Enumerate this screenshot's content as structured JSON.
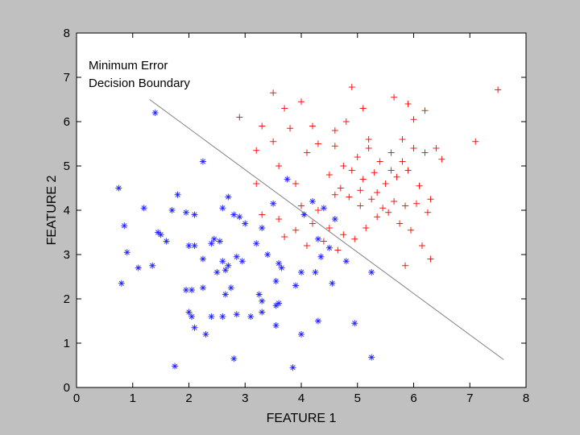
{
  "chart_data": {
    "type": "scatter",
    "xlabel": "FEATURE 1",
    "ylabel": "FEATURE 2",
    "xlim": [
      0,
      8
    ],
    "ylim": [
      0,
      8
    ],
    "xticks": [
      "0",
      "1",
      "2",
      "3",
      "4",
      "5",
      "6",
      "7",
      "8"
    ],
    "yticks": [
      "0",
      "1",
      "2",
      "3",
      "4",
      "5",
      "6",
      "7",
      "8"
    ],
    "grid": false,
    "annotation": {
      "line1": "Minimum Error",
      "line2": "Decision Boundary"
    },
    "boundary": {
      "x": [
        1.3,
        7.6
      ],
      "y": [
        6.5,
        0.63
      ]
    },
    "series": [
      {
        "color": "#ff0000",
        "marker": "+",
        "points": [
          [
            3.5,
            6.65
          ],
          [
            4.9,
            6.78
          ],
          [
            5.65,
            6.55
          ],
          [
            6.2,
            6.25
          ],
          [
            7.5,
            6.72
          ],
          [
            3.7,
            6.3
          ],
          [
            4.0,
            6.45
          ],
          [
            4.8,
            6.0
          ],
          [
            5.1,
            6.3
          ],
          [
            5.9,
            6.4
          ],
          [
            2.9,
            6.1
          ],
          [
            3.3,
            5.9
          ],
          [
            3.8,
            5.85
          ],
          [
            4.3,
            5.5
          ],
          [
            4.6,
            5.45
          ],
          [
            5.0,
            5.2
          ],
          [
            5.2,
            5.4
          ],
          [
            5.4,
            5.1
          ],
          [
            5.6,
            5.3
          ],
          [
            5.8,
            5.1
          ],
          [
            6.0,
            5.4
          ],
          [
            6.2,
            5.3
          ],
          [
            6.5,
            5.15
          ],
          [
            7.1,
            5.55
          ],
          [
            3.2,
            5.35
          ],
          [
            3.5,
            5.55
          ],
          [
            4.1,
            5.3
          ],
          [
            4.5,
            4.8
          ],
          [
            4.7,
            4.5
          ],
          [
            4.9,
            4.9
          ],
          [
            5.1,
            4.7
          ],
          [
            5.3,
            4.85
          ],
          [
            5.5,
            4.6
          ],
          [
            5.7,
            4.75
          ],
          [
            5.9,
            4.9
          ],
          [
            6.1,
            4.55
          ],
          [
            6.3,
            4.25
          ],
          [
            4.0,
            4.1
          ],
          [
            4.3,
            4.0
          ],
          [
            4.6,
            4.35
          ],
          [
            4.85,
            4.3
          ],
          [
            5.05,
            4.1
          ],
          [
            5.25,
            4.25
          ],
          [
            5.45,
            4.05
          ],
          [
            5.65,
            4.2
          ],
          [
            5.85,
            4.1
          ],
          [
            6.05,
            4.15
          ],
          [
            6.25,
            3.95
          ],
          [
            3.6,
            3.8
          ],
          [
            3.9,
            3.55
          ],
          [
            4.2,
            3.7
          ],
          [
            4.5,
            3.6
          ],
          [
            4.75,
            3.45
          ],
          [
            4.95,
            3.35
          ],
          [
            5.15,
            3.6
          ],
          [
            5.35,
            3.85
          ],
          [
            5.55,
            3.95
          ],
          [
            5.75,
            3.7
          ],
          [
            5.95,
            3.55
          ],
          [
            6.15,
            3.2
          ],
          [
            3.3,
            3.9
          ],
          [
            3.7,
            3.4
          ],
          [
            4.1,
            3.2
          ],
          [
            4.4,
            3.3
          ],
          [
            4.65,
            3.1
          ],
          [
            5.85,
            2.75
          ],
          [
            6.3,
            2.9
          ],
          [
            3.2,
            4.6
          ],
          [
            3.9,
            4.6
          ],
          [
            5.05,
            4.45
          ],
          [
            5.35,
            4.4
          ],
          [
            5.6,
            4.9
          ],
          [
            5.8,
            5.6
          ],
          [
            6.0,
            6.05
          ],
          [
            5.2,
            5.6
          ],
          [
            4.6,
            5.8
          ],
          [
            4.2,
            5.9
          ],
          [
            3.6,
            5.0
          ],
          [
            4.75,
            5.0
          ],
          [
            6.4,
            5.4
          ]
        ]
      },
      {
        "color": "#2020ff",
        "marker": "*",
        "points": [
          [
            1.4,
            6.2
          ],
          [
            2.25,
            5.1
          ],
          [
            0.75,
            4.5
          ],
          [
            1.2,
            4.05
          ],
          [
            1.8,
            4.35
          ],
          [
            1.7,
            4.0
          ],
          [
            1.95,
            3.95
          ],
          [
            2.1,
            3.9
          ],
          [
            2.6,
            4.05
          ],
          [
            2.7,
            4.3
          ],
          [
            0.85,
            3.65
          ],
          [
            1.45,
            3.5
          ],
          [
            1.5,
            3.45
          ],
          [
            1.6,
            3.3
          ],
          [
            2.0,
            3.2
          ],
          [
            2.1,
            3.2
          ],
          [
            2.4,
            3.25
          ],
          [
            2.45,
            3.35
          ],
          [
            2.55,
            3.3
          ],
          [
            2.9,
            3.85
          ],
          [
            3.0,
            3.7
          ],
          [
            2.8,
            3.9
          ],
          [
            0.9,
            3.05
          ],
          [
            1.1,
            2.7
          ],
          [
            1.35,
            2.75
          ],
          [
            2.25,
            2.9
          ],
          [
            2.6,
            2.85
          ],
          [
            2.7,
            2.75
          ],
          [
            2.85,
            2.95
          ],
          [
            2.95,
            2.85
          ],
          [
            2.5,
            2.6
          ],
          [
            2.65,
            2.65
          ],
          [
            3.2,
            3.25
          ],
          [
            3.3,
            3.6
          ],
          [
            3.4,
            3.0
          ],
          [
            3.6,
            2.8
          ],
          [
            3.65,
            2.7
          ],
          [
            3.55,
            2.4
          ],
          [
            3.9,
            2.3
          ],
          [
            4.0,
            2.6
          ],
          [
            0.8,
            2.35
          ],
          [
            1.95,
            2.2
          ],
          [
            2.05,
            2.2
          ],
          [
            2.25,
            2.25
          ],
          [
            2.65,
            2.1
          ],
          [
            2.75,
            2.25
          ],
          [
            3.25,
            2.1
          ],
          [
            3.3,
            1.95
          ],
          [
            3.55,
            1.85
          ],
          [
            3.6,
            1.9
          ],
          [
            2.0,
            1.7
          ],
          [
            2.05,
            1.6
          ],
          [
            2.4,
            1.6
          ],
          [
            2.6,
            1.6
          ],
          [
            2.85,
            1.65
          ],
          [
            3.1,
            1.6
          ],
          [
            3.3,
            1.7
          ],
          [
            3.55,
            1.4
          ],
          [
            4.0,
            1.2
          ],
          [
            4.3,
            1.5
          ],
          [
            2.1,
            1.35
          ],
          [
            2.3,
            1.2
          ],
          [
            2.8,
            0.65
          ],
          [
            3.85,
            0.45
          ],
          [
            1.75,
            0.48
          ],
          [
            3.75,
            4.7
          ],
          [
            4.2,
            4.2
          ],
          [
            4.4,
            4.05
          ],
          [
            4.6,
            3.8
          ],
          [
            4.3,
            3.35
          ],
          [
            4.35,
            2.95
          ],
          [
            4.8,
            2.85
          ],
          [
            4.55,
            2.35
          ],
          [
            4.25,
            2.6
          ],
          [
            4.95,
            1.45
          ],
          [
            5.25,
            0.68
          ],
          [
            5.25,
            2.6
          ],
          [
            3.5,
            4.15
          ],
          [
            4.05,
            3.9
          ],
          [
            4.5,
            3.15
          ]
        ]
      }
    ]
  }
}
